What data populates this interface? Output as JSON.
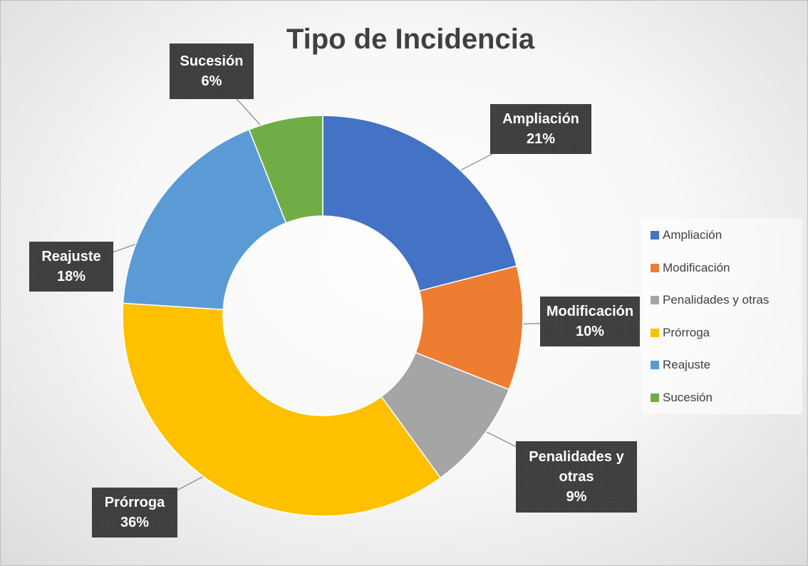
{
  "chart_data": {
    "type": "donut",
    "title": "Tipo de Incidencia",
    "categories": [
      "Ampliación",
      "Modificación",
      "Penalidades y otras",
      "Prórroga",
      "Reajuste",
      "Sucesión"
    ],
    "values": [
      21,
      10,
      9,
      36,
      18,
      6
    ],
    "value_labels": [
      "21%",
      "10%",
      "9%",
      "36%",
      "18%",
      "6%"
    ],
    "colors": [
      "#4472c4",
      "#ed7d31",
      "#a5a5a5",
      "#ffc000",
      "#5b9bd5",
      "#70ad47"
    ],
    "legend": "right"
  }
}
